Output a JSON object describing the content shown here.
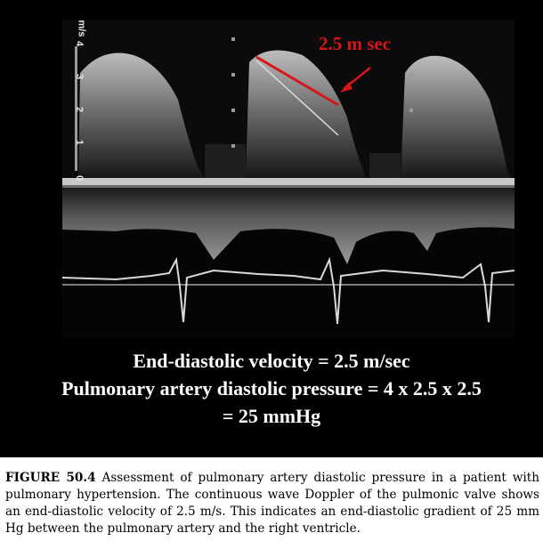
{
  "figure": {
    "axis": {
      "unit": "m/s",
      "ticks": [
        "4",
        "3",
        "2",
        "1",
        "0"
      ]
    },
    "annotation": "2.5 m sec",
    "overlay_lines": [
      "End-diastolic velocity = 2.5 m/sec",
      "Pulmonary artery diastolic pressure = 4 x 2.5 x 2.5",
      "= 25 mmHg"
    ]
  },
  "caption": {
    "label": "FIGURE 50.4",
    "text": "Assessment of pulmonary artery diastolic pressure in a patient with pulmonary hypertension. The continuous wave Doppler of the pulmonic valve shows an end-diastolic velocity of 2.5 m/s. This indicates an end-diastolic gradient of 25 mm Hg between the pulmonary artery and the right ventricle."
  },
  "colors": {
    "background": "#000000",
    "annotation": "#d8141b",
    "text": "#ffffff"
  }
}
